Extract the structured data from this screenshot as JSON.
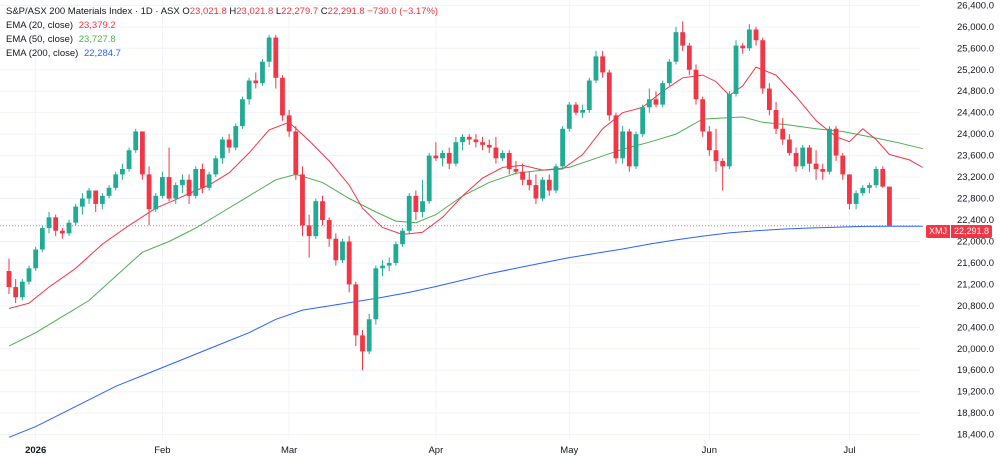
{
  "header": {
    "title": "S&P/ASX 200 Materials Index · 1D · ASX",
    "ohlc": {
      "o_label": "O",
      "o": "23,021.8",
      "h_label": "H",
      "h": "23,021.8",
      "l_label": "L",
      "l": "22,279.7",
      "c_label": "C",
      "c": "22,291.8",
      "change": "−730.0 (−3.17%)"
    },
    "ema20": {
      "label": "EMA (20, close)",
      "value": "23,379.2"
    },
    "ema50": {
      "label": "EMA (50, close)",
      "value": "23,727.8"
    },
    "ema200": {
      "label": "EMA (200, close)",
      "value": "22,284.7"
    }
  },
  "last_price": {
    "symbol": "XMJ",
    "value": "22,291.8"
  },
  "colors": {
    "up": "#22ab94",
    "down": "#f23645",
    "ema20": "#f23645",
    "ema50": "#4caf50",
    "ema200": "#2962ff",
    "grid": "#f0f3fa",
    "axis_text": "#131722"
  },
  "chart_data": {
    "type": "candlestick",
    "ylim": [
      18300,
      26500
    ],
    "y_ticks": [
      18400,
      18800,
      19200,
      19600,
      20000,
      20400,
      20800,
      21200,
      21600,
      22000,
      22400,
      22800,
      23200,
      23600,
      24000,
      24400,
      24800,
      25200,
      25600,
      26000,
      26400
    ],
    "y_tick_labels": [
      "18,400.0",
      "18,800.0",
      "19,200.0",
      "19,600.0",
      "20,000.0",
      "20,400.0",
      "20,800.0",
      "21,200.0",
      "21,600.0",
      "22,000.0",
      "22,400.0",
      "22,800.0",
      "23,200.0",
      "23,600.0",
      "24,000.0",
      "24,400.0",
      "24,800.0",
      "25,200.0",
      "25,600.0",
      "26,000.0",
      "26,400.0"
    ],
    "x_ticks": [
      {
        "label": "2026",
        "index": 4,
        "bold": true
      },
      {
        "label": "Feb",
        "index": 23
      },
      {
        "label": "Mar",
        "index": 42
      },
      {
        "label": "Apr",
        "index": 64
      },
      {
        "label": "May",
        "index": 84
      },
      {
        "label": "Jun",
        "index": 105
      },
      {
        "label": "Jul",
        "index": 126
      }
    ],
    "candles": [
      [
        21450,
        21680,
        21020,
        21150
      ],
      [
        21150,
        21300,
        20850,
        20960
      ],
      [
        20960,
        21300,
        20900,
        21250
      ],
      [
        21250,
        21550,
        21200,
        21500
      ],
      [
        21500,
        21900,
        21450,
        21850
      ],
      [
        21850,
        22300,
        21800,
        22250
      ],
      [
        22250,
        22550,
        22150,
        22450
      ],
      [
        22450,
        22500,
        22100,
        22200
      ],
      [
        22200,
        22250,
        22050,
        22150
      ],
      [
        22150,
        22400,
        22100,
        22350
      ],
      [
        22350,
        22700,
        22300,
        22650
      ],
      [
        22650,
        22900,
        22500,
        22800
      ],
      [
        22800,
        23000,
        22700,
        22950
      ],
      [
        22950,
        22950,
        22550,
        22700
      ],
      [
        22700,
        22900,
        22600,
        22850
      ],
      [
        22850,
        23050,
        22800,
        23000
      ],
      [
        23000,
        23300,
        22950,
        23250
      ],
      [
        23250,
        23450,
        23150,
        23350
      ],
      [
        23350,
        23750,
        23300,
        23700
      ],
      [
        23700,
        24100,
        23650,
        24050
      ],
      [
        24050,
        24050,
        23150,
        23250
      ],
      [
        23250,
        23400,
        22300,
        22600
      ],
      [
        22600,
        22900,
        22550,
        22850
      ],
      [
        22850,
        23300,
        22800,
        23200
      ],
      [
        23200,
        23750,
        22750,
        22800
      ],
      [
        22800,
        23100,
        22700,
        23050
      ],
      [
        23050,
        23250,
        22900,
        23150
      ],
      [
        23150,
        23250,
        22700,
        22850
      ],
      [
        22850,
        23400,
        22800,
        23350
      ],
      [
        23350,
        23450,
        22900,
        23000
      ],
      [
        23000,
        23300,
        22950,
        23250
      ],
      [
        23250,
        23600,
        23200,
        23550
      ],
      [
        23550,
        23950,
        23450,
        23900
      ],
      [
        23900,
        24000,
        23650,
        23750
      ],
      [
        23750,
        24200,
        23700,
        24150
      ],
      [
        24150,
        24700,
        24100,
        24650
      ],
      [
        24650,
        25050,
        24550,
        25000
      ],
      [
        25000,
        25150,
        24850,
        24950
      ],
      [
        24950,
        25400,
        24900,
        25350
      ],
      [
        25350,
        25850,
        25250,
        25800
      ],
      [
        25800,
        25850,
        24850,
        25050
      ],
      [
        25050,
        25100,
        24250,
        24350
      ],
      [
        24350,
        24450,
        23950,
        24050
      ],
      [
        24050,
        24150,
        23150,
        23250
      ],
      [
        23250,
        23400,
        22100,
        22300
      ],
      [
        22300,
        22500,
        21700,
        22100
      ],
      [
        22100,
        22800,
        22050,
        22750
      ],
      [
        22750,
        22850,
        22300,
        22400
      ],
      [
        22400,
        22450,
        21900,
        22050
      ],
      [
        22050,
        22150,
        21550,
        21650
      ],
      [
        21650,
        22050,
        21600,
        22000
      ],
      [
        22000,
        22100,
        21050,
        21200
      ],
      [
        21200,
        21250,
        20050,
        20250
      ],
      [
        20250,
        20350,
        19600,
        19950
      ],
      [
        19950,
        20650,
        19900,
        20550
      ],
      [
        20550,
        21550,
        20450,
        21500
      ],
      [
        21500,
        21650,
        21350,
        21550
      ],
      [
        21550,
        21700,
        21450,
        21600
      ],
      [
        21600,
        22000,
        21550,
        21950
      ],
      [
        21950,
        22250,
        21900,
        22200
      ],
      [
        22200,
        22900,
        22150,
        22850
      ],
      [
        22850,
        22950,
        22400,
        22550
      ],
      [
        22550,
        23150,
        22450,
        22750
      ],
      [
        22750,
        23650,
        22700,
        23600
      ],
      [
        23600,
        23850,
        23500,
        23550
      ],
      [
        23550,
        23700,
        23400,
        23650
      ],
      [
        23650,
        23750,
        23350,
        23450
      ],
      [
        23450,
        23950,
        23400,
        23850
      ],
      [
        23850,
        24000,
        23700,
        23950
      ],
      [
        23950,
        24000,
        23800,
        23900
      ],
      [
        23900,
        24000,
        23750,
        23850
      ],
      [
        23850,
        23950,
        23700,
        23800
      ],
      [
        23800,
        23900,
        23650,
        23750
      ],
      [
        23750,
        23950,
        23450,
        23550
      ],
      [
        23550,
        23700,
        23500,
        23650
      ],
      [
        23650,
        23700,
        23250,
        23350
      ],
      [
        23350,
        23500,
        23250,
        23300
      ],
      [
        23300,
        23450,
        23050,
        23150
      ],
      [
        23150,
        23300,
        22950,
        23050
      ],
      [
        23050,
        23250,
        22700,
        22800
      ],
      [
        22800,
        23200,
        22750,
        23150
      ],
      [
        23150,
        23250,
        22850,
        22950
      ],
      [
        22950,
        23450,
        22900,
        23400
      ],
      [
        23400,
        24150,
        23350,
        24100
      ],
      [
        24100,
        24600,
        24050,
        24550
      ],
      [
        24550,
        24600,
        24350,
        24400
      ],
      [
        24400,
        24550,
        24300,
        24450
      ],
      [
        24450,
        25050,
        24400,
        25000
      ],
      [
        25000,
        25550,
        24950,
        25450
      ],
      [
        25450,
        25550,
        25050,
        25150
      ],
      [
        25150,
        25200,
        24250,
        24350
      ],
      [
        24350,
        24400,
        23450,
        23550
      ],
      [
        23550,
        24150,
        23450,
        24050
      ],
      [
        24050,
        24100,
        23300,
        23400
      ],
      [
        23400,
        24050,
        23350,
        24000
      ],
      [
        24000,
        24550,
        23950,
        24500
      ],
      [
        24500,
        24850,
        24400,
        24650
      ],
      [
        24650,
        24800,
        24500,
        24550
      ],
      [
        24550,
        25000,
        24500,
        24950
      ],
      [
        24950,
        25400,
        24900,
        25350
      ],
      [
        25350,
        26000,
        25300,
        25900
      ],
      [
        25900,
        26100,
        25550,
        25650
      ],
      [
        25650,
        25700,
        25100,
        25200
      ],
      [
        25200,
        25300,
        24550,
        24650
      ],
      [
        24650,
        24700,
        23950,
        24050
      ],
      [
        24050,
        24150,
        23600,
        23700
      ],
      [
        23700,
        24100,
        23300,
        23500
      ],
      [
        23500,
        23550,
        22950,
        23400
      ],
      [
        23400,
        24800,
        23350,
        24750
      ],
      [
        24750,
        25750,
        24700,
        25650
      ],
      [
        25650,
        25700,
        25500,
        25600
      ],
      [
        25600,
        26050,
        25550,
        25950
      ],
      [
        25950,
        26000,
        25650,
        25750
      ],
      [
        25750,
        25800,
        24750,
        24850
      ],
      [
        24850,
        24950,
        24350,
        24450
      ],
      [
        24450,
        24600,
        24000,
        24100
      ],
      [
        24100,
        24300,
        23800,
        23900
      ],
      [
        23900,
        24000,
        23600,
        23650
      ],
      [
        23650,
        23750,
        23300,
        23400
      ],
      [
        23400,
        23800,
        23350,
        23750
      ],
      [
        23750,
        23800,
        23300,
        23450
      ],
      [
        23450,
        23700,
        23150,
        23350
      ],
      [
        23350,
        23450,
        23150,
        23300
      ],
      [
        23300,
        24150,
        23250,
        24100
      ],
      [
        24100,
        24150,
        23500,
        23600
      ],
      [
        23600,
        23650,
        23150,
        23250
      ],
      [
        23250,
        23250,
        22600,
        22700
      ],
      [
        22700,
        22950,
        22600,
        22900
      ],
      [
        22900,
        23050,
        22850,
        23000
      ],
      [
        23000,
        23100,
        22900,
        23050
      ],
      [
        23050,
        23400,
        23000,
        23350
      ],
      [
        23350,
        23400,
        23000,
        23021.8
      ],
      [
        23021.8,
        23021.8,
        22279.7,
        22291.8
      ]
    ],
    "ema20": [
      [
        0,
        20750
      ],
      [
        3,
        20850
      ],
      [
        6,
        21150
      ],
      [
        10,
        21500
      ],
      [
        14,
        21950
      ],
      [
        18,
        22300
      ],
      [
        22,
        22620
      ],
      [
        25,
        22780
      ],
      [
        28,
        22950
      ],
      [
        30,
        23050
      ],
      [
        33,
        23280
      ],
      [
        36,
        23650
      ],
      [
        39,
        24080
      ],
      [
        42,
        24220
      ],
      [
        45,
        23880
      ],
      [
        48,
        23500
      ],
      [
        51,
        23050
      ],
      [
        53,
        22620
      ],
      [
        56,
        22260
      ],
      [
        59,
        22130
      ],
      [
        62,
        22170
      ],
      [
        65,
        22450
      ],
      [
        68,
        22850
      ],
      [
        71,
        23180
      ],
      [
        74,
        23380
      ],
      [
        77,
        23420
      ],
      [
        80,
        23330
      ],
      [
        83,
        23350
      ],
      [
        86,
        23620
      ],
      [
        89,
        24100
      ],
      [
        92,
        24400
      ],
      [
        95,
        24500
      ],
      [
        98,
        24800
      ],
      [
        101,
        25050
      ],
      [
        104,
        25100
      ],
      [
        106,
        24980
      ],
      [
        108,
        24720
      ],
      [
        110,
        24900
      ],
      [
        112,
        25250
      ],
      [
        115,
        25100
      ],
      [
        118,
        24700
      ],
      [
        121,
        24250
      ],
      [
        124,
        23950
      ],
      [
        126,
        23860
      ],
      [
        128,
        24100
      ],
      [
        130,
        23900
      ],
      [
        132,
        23620
      ],
      [
        135,
        23520
      ],
      [
        136,
        23450
      ],
      [
        137,
        23379
      ]
    ],
    "ema50": [
      [
        0,
        20050
      ],
      [
        4,
        20300
      ],
      [
        8,
        20600
      ],
      [
        12,
        20900
      ],
      [
        16,
        21350
      ],
      [
        20,
        21800
      ],
      [
        24,
        22000
      ],
      [
        28,
        22250
      ],
      [
        32,
        22550
      ],
      [
        36,
        22850
      ],
      [
        40,
        23150
      ],
      [
        43,
        23250
      ],
      [
        47,
        23100
      ],
      [
        51,
        22800
      ],
      [
        55,
        22550
      ],
      [
        58,
        22380
      ],
      [
        61,
        22350
      ],
      [
        64,
        22500
      ],
      [
        68,
        22850
      ],
      [
        72,
        23100
      ],
      [
        76,
        23270
      ],
      [
        80,
        23330
      ],
      [
        84,
        23380
      ],
      [
        88,
        23550
      ],
      [
        92,
        23720
      ],
      [
        96,
        23850
      ],
      [
        100,
        24000
      ],
      [
        104,
        24280
      ],
      [
        107,
        24300
      ],
      [
        110,
        24320
      ],
      [
        113,
        24220
      ],
      [
        117,
        24170
      ],
      [
        121,
        24100
      ],
      [
        125,
        24050
      ],
      [
        129,
        23950
      ],
      [
        133,
        23850
      ],
      [
        137,
        23728
      ]
    ],
    "ema200": [
      [
        0,
        18350
      ],
      [
        4,
        18550
      ],
      [
        8,
        18800
      ],
      [
        12,
        19050
      ],
      [
        16,
        19300
      ],
      [
        20,
        19500
      ],
      [
        24,
        19700
      ],
      [
        28,
        19900
      ],
      [
        32,
        20100
      ],
      [
        36,
        20300
      ],
      [
        40,
        20550
      ],
      [
        44,
        20720
      ],
      [
        48,
        20800
      ],
      [
        52,
        20880
      ],
      [
        56,
        20960
      ],
      [
        60,
        21050
      ],
      [
        64,
        21160
      ],
      [
        68,
        21280
      ],
      [
        72,
        21400
      ],
      [
        76,
        21500
      ],
      [
        80,
        21600
      ],
      [
        84,
        21700
      ],
      [
        88,
        21780
      ],
      [
        92,
        21860
      ],
      [
        96,
        21950
      ],
      [
        100,
        22030
      ],
      [
        104,
        22100
      ],
      [
        108,
        22160
      ],
      [
        112,
        22200
      ],
      [
        116,
        22230
      ],
      [
        120,
        22250
      ],
      [
        124,
        22265
      ],
      [
        128,
        22280
      ],
      [
        132,
        22285
      ],
      [
        137,
        22285
      ]
    ]
  }
}
